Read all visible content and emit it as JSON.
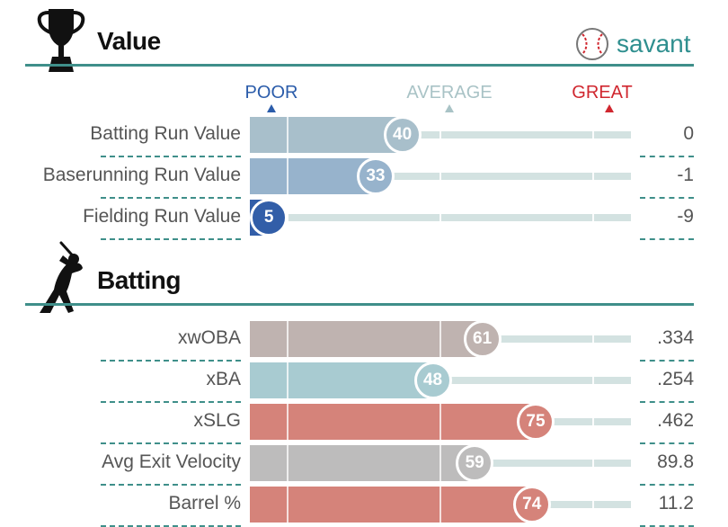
{
  "value_section": {
    "title": "Value",
    "brand": "savant",
    "scale": {
      "poor": "POOR",
      "average": "AVERAGE",
      "great": "GREAT",
      "colors": {
        "poor": "#2b5caa",
        "average": "#a9c3c6",
        "great": "#d0272f"
      }
    },
    "rows": [
      {
        "label": "Batting Run Value",
        "percentile": 40,
        "value": "0",
        "color": "#a8bfcb"
      },
      {
        "label": "Baserunning Run Value",
        "percentile": 33,
        "value": "-1",
        "color": "#97b3cc"
      },
      {
        "label": "Fielding Run Value",
        "percentile": 5,
        "value": "-9",
        "color": "#325ea8"
      }
    ]
  },
  "batting_section": {
    "title": "Batting",
    "rows": [
      {
        "label": "xwOBA",
        "percentile": 61,
        "value": ".334",
        "color": "#bfb3b0"
      },
      {
        "label": "xBA",
        "percentile": 48,
        "value": ".254",
        "color": "#a8cbd1"
      },
      {
        "label": "xSLG",
        "percentile": 75,
        "value": ".462",
        "color": "#d5837a"
      },
      {
        "label": "Avg Exit Velocity",
        "percentile": 59,
        "value": "89.8",
        "color": "#bdbcbc"
      },
      {
        "label": "Barrel %",
        "percentile": 74,
        "value": "11.2",
        "color": "#d5837a"
      }
    ]
  },
  "icons": {
    "value": "trophy-icon",
    "batting": "batter-icon",
    "brand": "baseball-icon"
  }
}
